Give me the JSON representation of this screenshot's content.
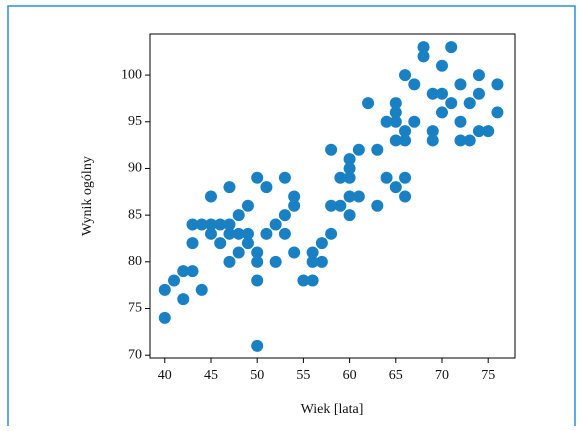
{
  "chart_data": {
    "type": "scatter",
    "x_label": "Wiek [lata]",
    "y_label": "Wynik ogólny",
    "color": "#1a80c4",
    "x": [
      40,
      40,
      41,
      42,
      42,
      43,
      43,
      43,
      44,
      44,
      45,
      45,
      45,
      46,
      46,
      47,
      47,
      47,
      47,
      48,
      48,
      48,
      49,
      49,
      49,
      50,
      50,
      50,
      50,
      50,
      51,
      51,
      52,
      52,
      53,
      53,
      53,
      54,
      54,
      54,
      55,
      56,
      56,
      56,
      57,
      57,
      58,
      58,
      58,
      59,
      59,
      60,
      60,
      60,
      60,
      60,
      61,
      61,
      62,
      63,
      63,
      64,
      64,
      65,
      65,
      65,
      65,
      65,
      66,
      66,
      66,
      66,
      66,
      67,
      67,
      68,
      68,
      69,
      69,
      69,
      70,
      70,
      70,
      71,
      71,
      72,
      72,
      72,
      73,
      73,
      74,
      74,
      74,
      75,
      76,
      76
    ],
    "values": [
      77,
      74,
      78,
      79,
      76,
      79,
      84,
      82,
      77,
      84,
      84,
      87,
      83,
      84,
      82,
      84,
      83,
      80,
      88,
      85,
      83,
      81,
      86,
      83,
      82,
      89,
      81,
      80,
      78,
      71,
      88,
      83,
      84,
      80,
      89,
      85,
      83,
      87,
      86,
      81,
      78,
      78,
      81,
      80,
      82,
      80,
      92,
      86,
      83,
      89,
      86,
      91,
      90,
      89,
      87,
      85,
      92,
      87,
      97,
      92,
      86,
      95,
      89,
      97,
      96,
      95,
      93,
      88,
      100,
      94,
      93,
      89,
      87,
      99,
      95,
      103,
      102,
      98,
      94,
      93,
      101,
      98,
      96,
      103,
      97,
      99,
      95,
      93,
      97,
      93,
      100,
      98,
      94,
      94,
      99,
      96
    ],
    "xlim": [
      38.4,
      77.9
    ],
    "ylim": [
      69.7,
      104.4
    ],
    "xticks": [
      40,
      45,
      50,
      55,
      60,
      65,
      70,
      75
    ],
    "yticks": [
      70,
      75,
      80,
      85,
      90,
      95,
      100
    ]
  }
}
